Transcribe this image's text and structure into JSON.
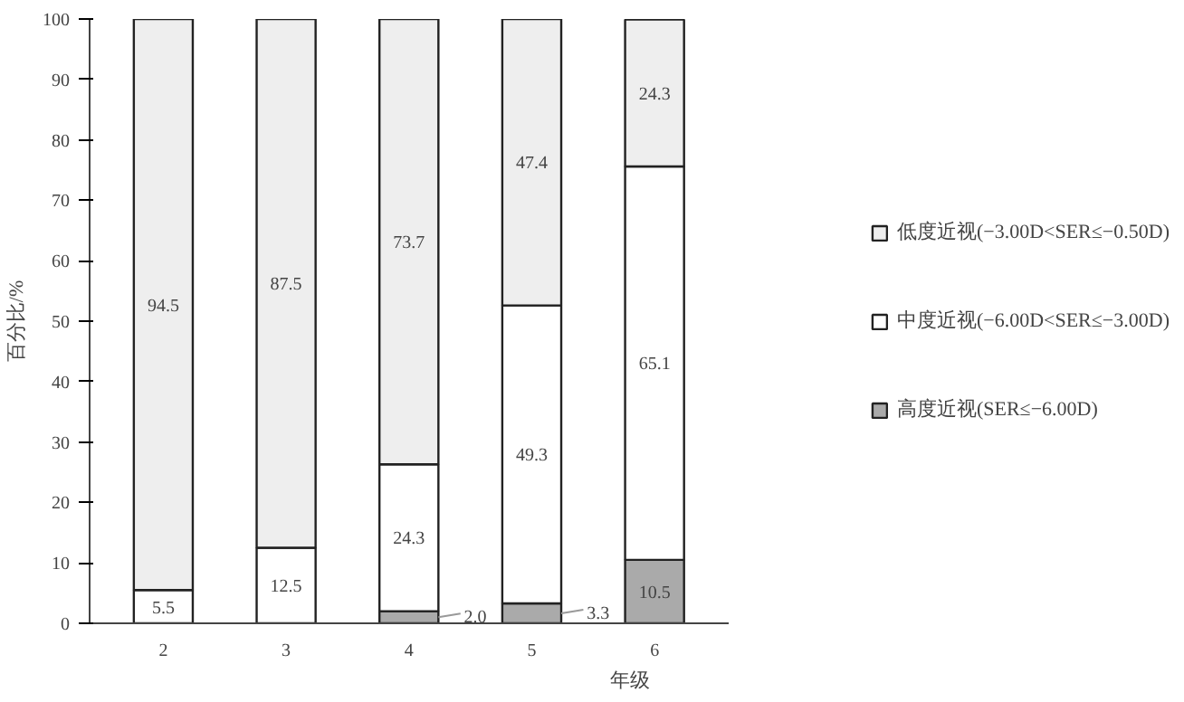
{
  "chart_data": {
    "type": "bar",
    "stacked": true,
    "xlabel": "年级",
    "ylabel": "百分比/%",
    "categories": [
      "2",
      "3",
      "4",
      "5",
      "6"
    ],
    "series": [
      {
        "name": "高度近视(SER≤−6.00D)",
        "color": "#aaaaaa",
        "values": [
          null,
          null,
          2.0,
          3.3,
          10.5
        ],
        "value_labels": [
          null,
          null,
          "2.0",
          "3.3",
          "10.5"
        ]
      },
      {
        "name": "中度近视(−6.00D<SER≤−3.00D)",
        "color": "#ffffff",
        "values": [
          5.5,
          12.5,
          24.3,
          49.3,
          65.1
        ],
        "value_labels": [
          "5.5",
          "12.5",
          "24.3",
          "49.3",
          "65.1"
        ]
      },
      {
        "name": "低度近视(−3.00D<SER≤−0.50D)",
        "color": "#eeeeee",
        "values": [
          94.5,
          87.5,
          73.7,
          47.4,
          24.3
        ],
        "value_labels": [
          "94.5",
          "87.5",
          "73.7",
          "47.4",
          "24.3"
        ]
      }
    ],
    "ylim": [
      0,
      100
    ],
    "yticks": [
      0,
      10,
      20,
      30,
      40,
      50,
      60,
      70,
      80,
      90,
      100
    ],
    "grid": false,
    "legend": "right"
  }
}
